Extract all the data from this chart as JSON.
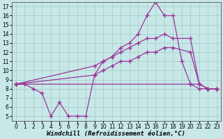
{
  "background_color": "#c8e8e8",
  "grid_color": "#a0c8c8",
  "line_color": "#993399",
  "marker": "+",
  "markersize": 4,
  "linewidth": 0.9,
  "markeredgewidth": 1.0,
  "xlabel": "Windchill (Refroidissement éolien,°C)",
  "xlabel_fontsize": 6.5,
  "tick_fontsize": 5.5,
  "xlim": [
    -0.5,
    23.5
  ],
  "ylim": [
    4.5,
    17.5
  ],
  "xticks": [
    0,
    1,
    2,
    3,
    4,
    5,
    6,
    7,
    8,
    9,
    10,
    11,
    12,
    13,
    14,
    15,
    16,
    17,
    18,
    19,
    20,
    21,
    22,
    23
  ],
  "yticks": [
    5,
    6,
    7,
    8,
    9,
    10,
    11,
    12,
    13,
    14,
    15,
    16,
    17
  ],
  "series": {
    "line_zigzag": {
      "x": [
        0,
        1,
        2,
        3,
        4,
        5,
        6,
        7,
        8,
        9,
        10,
        11,
        12,
        13,
        14,
        15,
        16,
        17,
        18,
        19,
        20,
        21,
        22,
        23
      ],
      "y": [
        8.5,
        8.5,
        8.0,
        7.5,
        5.0,
        6.5,
        5.0,
        5.0,
        5.0,
        9.5,
        11.0,
        11.5,
        12.5,
        13.0,
        14.0,
        16.0,
        17.5,
        16.0,
        16.0,
        11.0,
        8.5,
        8.0,
        8.0,
        8.0
      ]
    },
    "line_upper": {
      "x": [
        0,
        9,
        10,
        11,
        12,
        13,
        14,
        15,
        16,
        17,
        18,
        20,
        21,
        22,
        23
      ],
      "y": [
        8.5,
        10.5,
        11.0,
        11.5,
        12.0,
        12.5,
        13.0,
        13.5,
        13.5,
        14.0,
        13.5,
        13.5,
        8.5,
        8.0,
        8.0
      ]
    },
    "line_lower": {
      "x": [
        0,
        9,
        10,
        11,
        12,
        13,
        14,
        15,
        16,
        17,
        18,
        20,
        21,
        22,
        23
      ],
      "y": [
        8.5,
        9.5,
        10.0,
        10.5,
        11.0,
        11.0,
        11.5,
        12.0,
        12.0,
        12.5,
        12.5,
        12.0,
        8.5,
        8.0,
        8.0
      ]
    },
    "line_flat": {
      "x": [
        0,
        20,
        21,
        22,
        23
      ],
      "y": [
        8.5,
        8.5,
        8.5,
        8.0,
        8.0
      ]
    }
  }
}
